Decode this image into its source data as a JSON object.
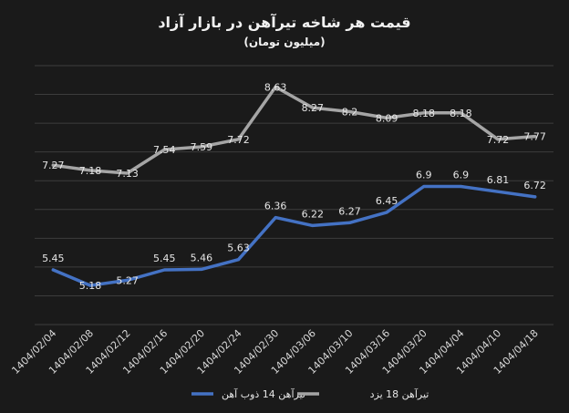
{
  "chart_data": {
    "type": "line",
    "title": "قیمت هر شاخه تیرآهن در بازار آزاد",
    "subtitle": "(میلیون تومان)",
    "categories": [
      "1404/02/04",
      "1404/02/08",
      "1404/02/12",
      "1404/02/16",
      "1404/02/20",
      "1404/02/24",
      "1404/02/30",
      "1404/03/06",
      "1404/03/10",
      "1404/03/16",
      "1404/03/20",
      "1404/04/04",
      "1404/04/10",
      "1404/04/18"
    ],
    "series": [
      {
        "name": "تیرآهن 14 ذوب آهن",
        "color": "#4472c4",
        "values": [
          5.45,
          5.18,
          5.27,
          5.45,
          5.46,
          5.63,
          6.36,
          6.22,
          6.27,
          6.45,
          6.9,
          6.9,
          6.81,
          6.72
        ]
      },
      {
        "name": "تیرآهن 18 یزد",
        "color": "#a5a5a5",
        "values": [
          7.27,
          7.18,
          7.13,
          7.54,
          7.59,
          7.72,
          8.63,
          8.27,
          8.2,
          8.09,
          8.18,
          8.18,
          7.72,
          7.77
        ]
      }
    ],
    "ylim": [
      4.5,
      9.0
    ],
    "grid": true,
    "legend": "bottom"
  }
}
